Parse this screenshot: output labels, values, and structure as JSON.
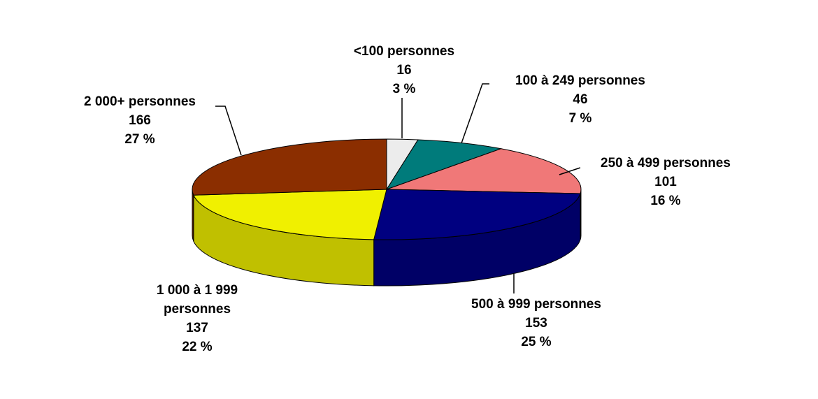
{
  "chart_data": {
    "type": "pie",
    "categories": [
      "<100 personnes",
      "100 à 249 personnes",
      "250 à 499 personnes",
      "500 à 999 personnes",
      "1 000 à 1 999 personnes",
      "2 000+ personnes"
    ],
    "values": [
      16,
      46,
      101,
      153,
      137,
      166
    ],
    "percent_labels": [
      "3 %",
      "7 %",
      "16 %",
      "25 %",
      "22 %",
      "27 %"
    ],
    "colors": [
      "#ececec",
      "#007b7b",
      "#f07878",
      "#000080",
      "#f0f000",
      "#8b2e00"
    ]
  }
}
